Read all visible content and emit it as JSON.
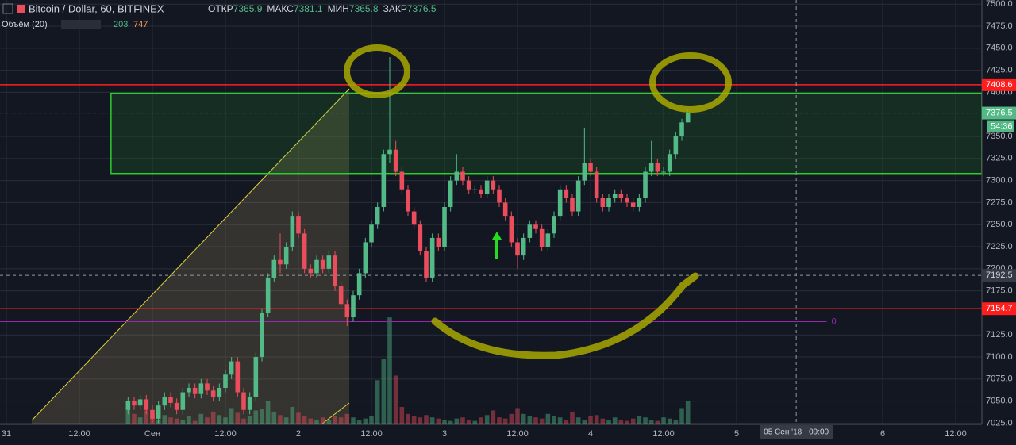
{
  "chart_data": {
    "type": "candlestick",
    "title": "Bitcoin / Dollar, 60, BITFINEX",
    "ohlc_labels": [
      "ОТКР",
      "МАКС",
      "МИН",
      "ЗАКР"
    ],
    "ohlc_values": [
      7365.9,
      7381.1,
      7365.8,
      7376.5
    ],
    "volume_title": "Объём (20)",
    "volume_values": [
      203,
      747
    ],
    "x": [
      20,
      21,
      22,
      23,
      24,
      25,
      26,
      27,
      28,
      29,
      30,
      31,
      32,
      33,
      34,
      35,
      36,
      37,
      38,
      39,
      40,
      41,
      42,
      43,
      44,
      45,
      46,
      47,
      48,
      49,
      50,
      51,
      52,
      53,
      54,
      55,
      56,
      57,
      58,
      59,
      60,
      61,
      62,
      63,
      64,
      65,
      66,
      67,
      68,
      69,
      70,
      71,
      72,
      73,
      74,
      75,
      76,
      77,
      78,
      79,
      80,
      81,
      82,
      83,
      84,
      85,
      86,
      87,
      88,
      89,
      90,
      91,
      92,
      93,
      94,
      95,
      96,
      97,
      98,
      99,
      100,
      101,
      102,
      103,
      104,
      105,
      106,
      107,
      108,
      109,
      110,
      111,
      112
    ],
    "open": [
      7040,
      7050,
      7045,
      7052,
      7040,
      7030,
      7045,
      7055,
      7048,
      7040,
      7060,
      7065,
      7058,
      7070,
      7062,
      7055,
      7065,
      7080,
      7095,
      7060,
      7040,
      7055,
      7100,
      7150,
      7190,
      7210,
      7205,
      7225,
      7260,
      7240,
      7200,
      7195,
      7210,
      7200,
      7215,
      7180,
      7160,
      7145,
      7170,
      7195,
      7230,
      7250,
      7270,
      7330,
      7335,
      7310,
      7290,
      7265,
      7250,
      7220,
      7190,
      7235,
      7225,
      7270,
      7300,
      7310,
      7300,
      7290,
      7290,
      7285,
      7300,
      7290,
      7275,
      7260,
      7230,
      7215,
      7235,
      7250,
      7245,
      7225,
      7240,
      7260,
      7290,
      7280,
      7265,
      7300,
      7320,
      7310,
      7280,
      7270,
      7280,
      7285,
      7280,
      7275,
      7270,
      7280,
      7310,
      7320,
      7310,
      7310,
      7330,
      7350,
      7365.9
    ],
    "high": [
      7055,
      7055,
      7057,
      7057,
      7045,
      7050,
      7060,
      7060,
      7053,
      7065,
      7070,
      7070,
      7075,
      7075,
      7067,
      7070,
      7085,
      7100,
      7100,
      7065,
      7060,
      7105,
      7155,
      7195,
      7215,
      7240,
      7230,
      7265,
      7265,
      7245,
      7205,
      7215,
      7215,
      7220,
      7220,
      7185,
      7165,
      7175,
      7200,
      7235,
      7255,
      7275,
      7335,
      7440,
      7345,
      7315,
      7295,
      7270,
      7255,
      7225,
      7240,
      7240,
      7275,
      7305,
      7330,
      7315,
      7305,
      7295,
      7295,
      7305,
      7305,
      7295,
      7280,
      7265,
      7235,
      7240,
      7255,
      7255,
      7250,
      7245,
      7265,
      7295,
      7295,
      7285,
      7305,
      7360,
      7325,
      7315,
      7285,
      7285,
      7290,
      7290,
      7285,
      7280,
      7285,
      7315,
      7345,
      7325,
      7315,
      7335,
      7355,
      7370,
      7381.1
    ],
    "low": [
      7035,
      7040,
      7040,
      7035,
      7025,
      7025,
      7040,
      7043,
      7035,
      7035,
      7055,
      7053,
      7053,
      7057,
      7050,
      7050,
      7060,
      7075,
      7055,
      7035,
      7035,
      7050,
      7095,
      7145,
      7185,
      7195,
      7200,
      7220,
      7235,
      7195,
      7190,
      7190,
      7195,
      7195,
      7175,
      7155,
      7135,
      7140,
      7165,
      7190,
      7225,
      7245,
      7265,
      7320,
      7305,
      7285,
      7260,
      7245,
      7215,
      7185,
      7185,
      7220,
      7220,
      7265,
      7295,
      7295,
      7285,
      7285,
      7280,
      7280,
      7285,
      7270,
      7255,
      7225,
      7200,
      7210,
      7230,
      7240,
      7220,
      7220,
      7235,
      7255,
      7275,
      7260,
      7260,
      7295,
      7305,
      7275,
      7265,
      7265,
      7275,
      7275,
      7270,
      7265,
      7265,
      7275,
      7305,
      7305,
      7305,
      7305,
      7325,
      7345,
      7365.8
    ],
    "close": [
      7050,
      7045,
      7052,
      7040,
      7030,
      7045,
      7055,
      7048,
      7040,
      7060,
      7065,
      7058,
      7070,
      7062,
      7055,
      7065,
      7080,
      7095,
      7060,
      7040,
      7055,
      7100,
      7150,
      7190,
      7210,
      7205,
      7225,
      7260,
      7240,
      7200,
      7195,
      7210,
      7200,
      7215,
      7180,
      7160,
      7145,
      7170,
      7195,
      7230,
      7250,
      7270,
      7330,
      7335,
      7310,
      7290,
      7265,
      7250,
      7220,
      7190,
      7235,
      7225,
      7270,
      7300,
      7310,
      7300,
      7290,
      7290,
      7285,
      7300,
      7290,
      7275,
      7260,
      7230,
      7215,
      7235,
      7250,
      7245,
      7225,
      7240,
      7260,
      7290,
      7280,
      7265,
      7300,
      7320,
      7310,
      7280,
      7270,
      7280,
      7285,
      7280,
      7275,
      7270,
      7280,
      7310,
      7320,
      7310,
      7310,
      7330,
      7350,
      7365.9,
      7376.5
    ],
    "volume": [
      150,
      90,
      60,
      120,
      70,
      40,
      80,
      60,
      50,
      40,
      70,
      30,
      90,
      60,
      110,
      80,
      60,
      140,
      100,
      50,
      70,
      120,
      130,
      200,
      110,
      80,
      60,
      150,
      100,
      70,
      50,
      40,
      60,
      40,
      70,
      60,
      90,
      60,
      40,
      50,
      70,
      380,
      560,
      920,
      420,
      150,
      90,
      70,
      60,
      80,
      60,
      50,
      40,
      30,
      50,
      60,
      40,
      30,
      60,
      80,
      120,
      60,
      50,
      90,
      140,
      90,
      70,
      60,
      50,
      90,
      70,
      60,
      40,
      110,
      60,
      40,
      70,
      80,
      50,
      40,
      60,
      40,
      30,
      50,
      70,
      60,
      40,
      30,
      60,
      50,
      40,
      140,
      203
    ],
    "up_color": "#53b987",
    "down_color": "#eb4d5c",
    "volume_lim": [
      0,
      3650
    ],
    "xlim": [
      -1.04,
      160.3
    ],
    "xticks": [
      {
        "value": 0,
        "label": "31"
      },
      {
        "value": 12,
        "label": "12:00"
      },
      {
        "value": 24,
        "label": "Сен"
      },
      {
        "value": 36,
        "label": "12:00"
      },
      {
        "value": 48,
        "label": "2"
      },
      {
        "value": 60,
        "label": "12:00"
      },
      {
        "value": 72,
        "label": "3"
      },
      {
        "value": 84,
        "label": "12:00"
      },
      {
        "value": 96,
        "label": "4"
      },
      {
        "value": 108,
        "label": "12:00"
      },
      {
        "value": 120,
        "label": "5"
      },
      {
        "value": 144,
        "label": "6"
      },
      {
        "value": 156,
        "label": "12:00"
      }
    ],
    "ylim": [
      7023.6,
      7504.7
    ],
    "yticks": [
      {
        "value": 7500,
        "label": "7500.0"
      },
      {
        "value": 7475,
        "label": "7475.0"
      },
      {
        "value": 7450,
        "label": "7450.0"
      },
      {
        "value": 7425,
        "label": "7425.0"
      },
      {
        "value": 7400,
        "label": "7400.0"
      },
      {
        "value": 7350,
        "label": "7350.0"
      },
      {
        "value": 7325,
        "label": "7325.0"
      },
      {
        "value": 7300,
        "label": "7300.0"
      },
      {
        "value": 7275,
        "label": "7275.0"
      },
      {
        "value": 7250,
        "label": "7250.0"
      },
      {
        "value": 7225,
        "label": "7225.0"
      },
      {
        "value": 7200,
        "label": "7200.0"
      },
      {
        "value": 7175,
        "label": "7175.0"
      },
      {
        "value": 7125,
        "label": "7125.0"
      },
      {
        "value": 7100,
        "label": "7100.0"
      },
      {
        "value": 7075,
        "label": "7075.0"
      },
      {
        "value": 7050,
        "label": "7050.0"
      },
      {
        "value": 7025,
        "label": "7025.0"
      }
    ],
    "grid": true,
    "levels": [
      {
        "value": 7408.6,
        "color": "#ff1e1e"
      },
      {
        "value": 7154.7,
        "color": "#ff1e1e"
      }
    ],
    "zone": {
      "low": 7308,
      "high": 7399,
      "x_start": 17.2,
      "color": "#2ecc2e"
    },
    "fib_level": {
      "value": 7140,
      "label": "0",
      "x_end": 134.8,
      "color": "#9c27b0"
    },
    "last_price": 7376.5,
    "countdown": "54:36",
    "crosshair": {
      "value": 7192.5,
      "x": 129.8,
      "time_label": "05 Сен '18 - 09:00"
    }
  }
}
